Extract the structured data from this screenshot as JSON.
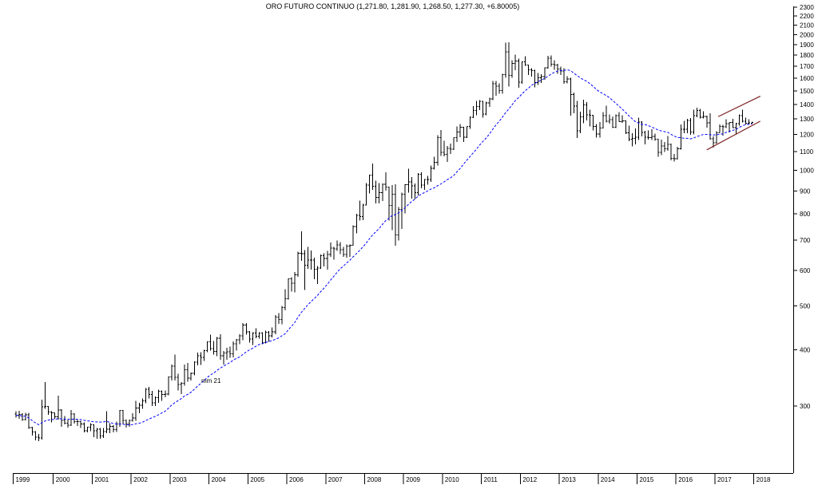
{
  "title": "ORO FUTURO CONTINUO (1,271.80, 1,281.90, 1,268.50, 1,277.30, +6.80005)",
  "chart_data": {
    "type": "bar",
    "subtype": "ohlc-bars-monthly",
    "instrument": "ORO FUTURO CONTINUO",
    "last_quote": {
      "open": 1271.8,
      "high": 1281.9,
      "low": 1268.5,
      "close": 1277.3,
      "change": 6.80005
    },
    "x_start": "1999-01",
    "interval": "monthly",
    "x_year_labels": [
      "1999",
      "2000",
      "2001",
      "2002",
      "2003",
      "2004",
      "2005",
      "2006",
      "2007",
      "2008",
      "2009",
      "2010",
      "2011",
      "2012",
      "2013",
      "2014",
      "2015",
      "2016",
      "2017",
      "2018"
    ],
    "y_ticks": [
      2300,
      2200,
      2100,
      2000,
      1900,
      1800,
      1700,
      1600,
      1500,
      1400,
      1300,
      1200,
      1100,
      1000,
      900,
      800,
      700,
      600,
      500,
      400,
      300
    ],
    "y_scale": "log",
    "ylim_approx": [
      210,
      2350
    ],
    "grid": "off",
    "bar_color": "#000000",
    "background_color": "#ffffff",
    "moving_average": {
      "label": "mm 21",
      "period": 21,
      "color": "#0000ff",
      "style": "dashed"
    },
    "trend_channel": {
      "color": "#7b2222",
      "lines": [
        {
          "from_month": 213,
          "from_price": 1110,
          "to_month": 229.5,
          "to_price": 1285
        },
        {
          "from_month": 216.5,
          "from_price": 1315,
          "to_month": 229.5,
          "to_price": 1460
        }
      ]
    },
    "bars": [
      [
        287.8,
        292,
        283,
        285.7
      ],
      [
        285.7,
        293,
        281,
        287.6
      ],
      [
        287.6,
        289,
        278,
        280.0
      ],
      [
        280.0,
        290,
        279,
        286.6
      ],
      [
        286.6,
        290,
        267,
        268.6
      ],
      [
        268.6,
        270,
        258,
        262.6
      ],
      [
        262.6,
        264,
        252,
        255.8
      ],
      [
        255.8,
        260,
        251,
        254.8
      ],
      [
        254.8,
        310,
        253,
        299.0
      ],
      [
        299.0,
        339,
        296,
        299.1
      ],
      [
        299.1,
        300,
        287,
        290.7
      ],
      [
        290.7,
        292,
        276,
        289.6
      ],
      [
        289.6,
        290,
        281,
        283.7
      ],
      [
        283.7,
        316,
        280,
        293.7
      ],
      [
        293.7,
        295,
        270,
        278.7
      ],
      [
        278.7,
        285,
        273,
        275.1
      ],
      [
        275.1,
        280,
        269,
        272.3
      ],
      [
        272.3,
        294,
        271,
        288.2
      ],
      [
        288.2,
        289,
        274,
        276.8
      ],
      [
        276.8,
        280,
        271,
        277.0
      ],
      [
        277.0,
        278,
        268,
        273.7
      ],
      [
        273.7,
        276,
        262,
        264.5
      ],
      [
        264.5,
        270,
        262,
        269.1
      ],
      [
        269.1,
        275,
        264,
        272.7
      ],
      [
        272.7,
        273,
        256,
        264.5
      ],
      [
        264.5,
        268,
        254,
        266.7
      ],
      [
        266.7,
        268,
        254,
        257.7
      ],
      [
        257.7,
        268,
        255,
        263.2
      ],
      [
        263.2,
        292,
        261,
        266.7
      ],
      [
        266.7,
        275,
        261,
        270.6
      ],
      [
        270.6,
        272,
        262,
        265.9
      ],
      [
        265.9,
        277,
        263,
        273.5
      ],
      [
        273.5,
        294,
        270,
        293.1
      ],
      [
        293.1,
        294,
        273,
        278.7
      ],
      [
        278.7,
        280,
        269,
        274.5
      ],
      [
        274.5,
        280,
        270,
        279.0
      ],
      [
        279.0,
        289,
        277,
        282.3
      ],
      [
        282.3,
        308,
        278,
        296.9
      ],
      [
        296.9,
        305,
        289,
        301.4
      ],
      [
        301.4,
        312,
        296,
        308.2
      ],
      [
        308.2,
        329,
        304,
        326.6
      ],
      [
        326.6,
        331,
        312,
        318.5
      ],
      [
        318.5,
        324,
        300,
        304.7
      ],
      [
        304.7,
        315,
        300,
        312.8
      ],
      [
        312.8,
        326,
        305,
        323.7
      ],
      [
        323.7,
        325,
        308,
        318.4
      ],
      [
        318.4,
        325,
        314,
        319.1
      ],
      [
        319.1,
        349,
        317,
        348.2
      ],
      [
        348.2,
        371,
        342,
        367.5
      ],
      [
        367.5,
        390,
        342,
        347.5
      ],
      [
        347.5,
        354,
        325,
        334.9
      ],
      [
        334.9,
        339,
        319,
        336.8
      ],
      [
        336.8,
        371,
        333,
        361.4
      ],
      [
        361.4,
        374,
        340,
        346.0
      ],
      [
        346.0,
        356,
        342,
        354.8
      ],
      [
        354.8,
        377,
        351,
        375.6
      ],
      [
        375.6,
        394,
        369,
        388.0
      ],
      [
        388.0,
        395,
        370,
        384.6
      ],
      [
        384.6,
        400,
        378,
        398.0
      ],
      [
        398.0,
        417,
        395,
        416.1
      ],
      [
        416.1,
        432,
        398,
        402.4
      ],
      [
        402.4,
        418,
        390,
        396.8
      ],
      [
        396.8,
        427,
        387,
        423.7
      ],
      [
        423.7,
        433,
        380,
        387.5
      ],
      [
        387.5,
        397,
        371,
        393.3
      ],
      [
        393.3,
        404,
        380,
        395.8
      ],
      [
        395.8,
        406,
        384,
        391.4
      ],
      [
        391.4,
        417,
        385,
        412.0
      ],
      [
        412.0,
        422,
        398,
        420.4
      ],
      [
        420.4,
        433,
        411,
        429.4
      ],
      [
        429.4,
        458,
        420,
        453.2
      ],
      [
        453.2,
        458,
        432,
        438.4
      ],
      [
        438.4,
        440,
        415,
        422.2
      ],
      [
        422.2,
        437,
        410,
        435.5
      ],
      [
        435.5,
        446,
        424,
        428.8
      ],
      [
        428.8,
        437,
        423,
        435.7
      ],
      [
        435.7,
        437,
        411,
        414.5
      ],
      [
        414.5,
        441,
        413,
        437.1
      ],
      [
        437.1,
        440,
        416,
        429.0
      ],
      [
        429.0,
        448,
        426,
        438.0
      ],
      [
        438.0,
        477,
        433,
        472.3
      ],
      [
        472.3,
        482,
        456,
        466.9
      ],
      [
        466.9,
        500,
        455,
        495.7
      ],
      [
        495.7,
        545,
        489,
        518.9
      ],
      [
        518.9,
        576,
        517,
        574.2
      ],
      [
        574.2,
        579,
        538,
        561.4
      ],
      [
        561.4,
        595,
        536,
        586.7
      ],
      [
        586.7,
        660,
        580,
        654.5
      ],
      [
        654.5,
        732,
        630,
        653.0
      ],
      [
        653.0,
        665,
        543,
        616.0
      ],
      [
        616.0,
        676,
        605,
        632.5
      ],
      [
        632.5,
        664,
        602,
        632.1
      ],
      [
        632.1,
        640,
        573,
        603.2
      ],
      [
        603.2,
        613,
        560,
        606.8
      ],
      [
        606.8,
        650,
        604,
        646.2
      ],
      [
        646.2,
        654,
        612,
        638.0
      ],
      [
        638.0,
        663,
        602,
        650.5
      ],
      [
        650.5,
        692,
        643,
        672.5
      ],
      [
        672.5,
        676,
        634,
        669.0
      ],
      [
        669.0,
        698,
        663,
        683.0
      ],
      [
        683.0,
        693,
        652,
        666.0
      ],
      [
        666.0,
        676,
        642,
        650.5
      ],
      [
        650.5,
        684,
        640,
        679.0
      ],
      [
        679.0,
        685,
        642,
        681.5
      ],
      [
        681.5,
        755,
        680,
        750.0
      ],
      [
        750.0,
        800,
        725,
        795.0
      ],
      [
        795.0,
        856,
        773,
        789.0
      ],
      [
        789.0,
        843,
        775,
        838.0
      ],
      [
        838.0,
        937,
        836,
        928.0
      ],
      [
        928.0,
        978,
        889,
        975.0
      ],
      [
        975.0,
        1034,
        904,
        921.0
      ],
      [
        921.0,
        949,
        845,
        871.0
      ],
      [
        871.0,
        937,
        845,
        891.5
      ],
      [
        891.5,
        935,
        855,
        930.3
      ],
      [
        930.3,
        989,
        902,
        918.0
      ],
      [
        918.0,
        919,
        774,
        835.2
      ],
      [
        835.2,
        927,
        736,
        884.5
      ],
      [
        884.5,
        931,
        681,
        718.2
      ],
      [
        718.2,
        829,
        699,
        819.5
      ],
      [
        819.5,
        892,
        741,
        884.3
      ],
      [
        884.3,
        931,
        802,
        928.4
      ],
      [
        928.4,
        1007,
        892,
        942.5
      ],
      [
        942.5,
        966,
        865,
        922.6
      ],
      [
        922.6,
        934,
        864,
        891.2
      ],
      [
        891.2,
        985,
        879,
        980.3
      ],
      [
        980.3,
        990,
        913,
        927.4
      ],
      [
        927.4,
        956,
        905,
        953.7
      ],
      [
        953.7,
        972,
        930,
        953.5
      ],
      [
        953.5,
        1025,
        943,
        1009.3
      ],
      [
        1009.3,
        1072,
        1004,
        1040.4
      ],
      [
        1040.4,
        1195,
        1025,
        1182.3
      ],
      [
        1182.3,
        1227,
        1075,
        1096.2
      ],
      [
        1096.2,
        1163,
        1074,
        1083.8
      ],
      [
        1083.8,
        1131,
        1044,
        1118.3
      ],
      [
        1118.3,
        1146,
        1088,
        1113.3
      ],
      [
        1113.3,
        1182,
        1110,
        1180.7
      ],
      [
        1180.7,
        1250,
        1156,
        1215.0
      ],
      [
        1215.0,
        1266,
        1185,
        1245.9
      ],
      [
        1245.9,
        1248,
        1155,
        1183.9
      ],
      [
        1183.9,
        1252,
        1179,
        1250.3
      ],
      [
        1250.3,
        1316,
        1235,
        1309.6
      ],
      [
        1309.6,
        1388,
        1305,
        1357.1
      ],
      [
        1357.1,
        1424,
        1325,
        1386.1
      ],
      [
        1386.1,
        1432,
        1361,
        1421.4
      ],
      [
        1421.4,
        1424,
        1309,
        1333.8
      ],
      [
        1333.8,
        1418,
        1325,
        1409.9
      ],
      [
        1409.9,
        1448,
        1381,
        1439.9
      ],
      [
        1439.9,
        1577,
        1432,
        1556.4
      ],
      [
        1556.4,
        1577,
        1462,
        1536.8
      ],
      [
        1536.8,
        1559,
        1478,
        1502.8
      ],
      [
        1502.8,
        1637,
        1478,
        1631.2
      ],
      [
        1631.2,
        1917,
        1605,
        1831.7
      ],
      [
        1831.7,
        1923,
        1535,
        1622.3
      ],
      [
        1622.3,
        1754,
        1605,
        1725.2
      ],
      [
        1725.2,
        1804,
        1667,
        1745.5
      ],
      [
        1745.5,
        1767,
        1523,
        1566.8
      ],
      [
        1566.8,
        1744,
        1556,
        1740.4
      ],
      [
        1740.4,
        1792,
        1705,
        1711.3
      ],
      [
        1711.3,
        1717,
        1627,
        1671.9
      ],
      [
        1671.9,
        1685,
        1613,
        1664.2
      ],
      [
        1664.2,
        1672,
        1527,
        1564.2
      ],
      [
        1564.2,
        1642,
        1547,
        1604.2
      ],
      [
        1604.2,
        1633,
        1563,
        1614.6
      ],
      [
        1614.6,
        1692,
        1589,
        1687.6
      ],
      [
        1687.6,
        1794,
        1682,
        1771.1
      ],
      [
        1771.1,
        1798,
        1699,
        1719.1
      ],
      [
        1719.1,
        1755,
        1672,
        1712.7
      ],
      [
        1712.7,
        1723,
        1636,
        1675.8
      ],
      [
        1675.8,
        1697,
        1627,
        1660.6
      ],
      [
        1660.6,
        1684,
        1554,
        1572.3
      ],
      [
        1572.3,
        1616,
        1560,
        1594.8
      ],
      [
        1594.8,
        1605,
        1321,
        1472.1
      ],
      [
        1472.1,
        1488,
        1338,
        1386.5
      ],
      [
        1386.5,
        1424,
        1179,
        1223.7
      ],
      [
        1223.7,
        1348,
        1208,
        1312.4
      ],
      [
        1312.4,
        1434,
        1272,
        1396.1
      ],
      [
        1396.1,
        1416,
        1291,
        1326.5
      ],
      [
        1326.5,
        1362,
        1251,
        1323.7
      ],
      [
        1323.7,
        1327,
        1225,
        1250.4
      ],
      [
        1250.4,
        1267,
        1181,
        1202.3
      ],
      [
        1202.3,
        1280,
        1182,
        1239.8
      ],
      [
        1239.8,
        1345,
        1237,
        1321.4
      ],
      [
        1321.4,
        1392,
        1277,
        1283.8
      ],
      [
        1283.8,
        1331,
        1268,
        1295.6
      ],
      [
        1295.6,
        1315,
        1240,
        1245.6
      ],
      [
        1245.6,
        1330,
        1240,
        1322.0
      ],
      [
        1322.0,
        1346,
        1281,
        1281.3
      ],
      [
        1281.3,
        1324,
        1273,
        1287.4
      ],
      [
        1287.4,
        1290,
        1204,
        1211.6
      ],
      [
        1211.6,
        1256,
        1160,
        1171.6
      ],
      [
        1171.6,
        1208,
        1130,
        1175.8
      ],
      [
        1175.8,
        1239,
        1141,
        1184.1
      ],
      [
        1184.1,
        1308,
        1168,
        1279.2
      ],
      [
        1279.2,
        1285,
        1190,
        1213.1
      ],
      [
        1213.1,
        1223,
        1141,
        1183.2
      ],
      [
        1183.2,
        1225,
        1170,
        1182.4
      ],
      [
        1182.4,
        1232,
        1168,
        1189.4
      ],
      [
        1189.4,
        1206,
        1162,
        1171.5
      ],
      [
        1171.5,
        1175,
        1072,
        1095.1
      ],
      [
        1095.1,
        1170,
        1080,
        1132.5
      ],
      [
        1132.5,
        1156,
        1098,
        1115.2
      ],
      [
        1115.2,
        1191,
        1104,
        1141.4
      ],
      [
        1141.4,
        1146,
        1052,
        1061.9
      ],
      [
        1061.9,
        1088,
        1045,
        1060.2
      ],
      [
        1060.2,
        1128,
        1057,
        1116.4
      ],
      [
        1116.4,
        1264,
        1111,
        1234.0
      ],
      [
        1234.0,
        1287,
        1208,
        1233.5
      ],
      [
        1233.5,
        1299,
        1209,
        1290.5
      ],
      [
        1290.5,
        1306,
        1199,
        1215.0
      ],
      [
        1215.0,
        1362,
        1202,
        1320.6
      ],
      [
        1320.6,
        1377,
        1310,
        1357.5
      ],
      [
        1357.5,
        1367,
        1302,
        1311.4
      ],
      [
        1311.4,
        1352,
        1302,
        1317.1
      ],
      [
        1317.1,
        1321,
        1243,
        1273.0
      ],
      [
        1273.0,
        1338,
        1170,
        1173.9
      ],
      [
        1173.9,
        1188,
        1124,
        1151.7
      ],
      [
        1151.7,
        1220,
        1146,
        1211.4
      ],
      [
        1211.4,
        1264,
        1210,
        1251.2
      ],
      [
        1251.2,
        1261,
        1194,
        1247.3
      ],
      [
        1247.3,
        1297,
        1241,
        1268.3
      ],
      [
        1268.3,
        1276,
        1214,
        1275.4
      ],
      [
        1275.4,
        1299,
        1240,
        1242.3
      ],
      [
        1242.3,
        1275,
        1204,
        1268.4
      ],
      [
        1268.4,
        1331,
        1257,
        1321.6
      ],
      [
        1321.6,
        1362,
        1277,
        1284.8
      ],
      [
        1284.8,
        1308,
        1263,
        1271.5
      ],
      [
        1271.5,
        1297,
        1262,
        1273.2
      ],
      [
        1271.8,
        1281.9,
        1268.5,
        1277.3
      ]
    ]
  }
}
